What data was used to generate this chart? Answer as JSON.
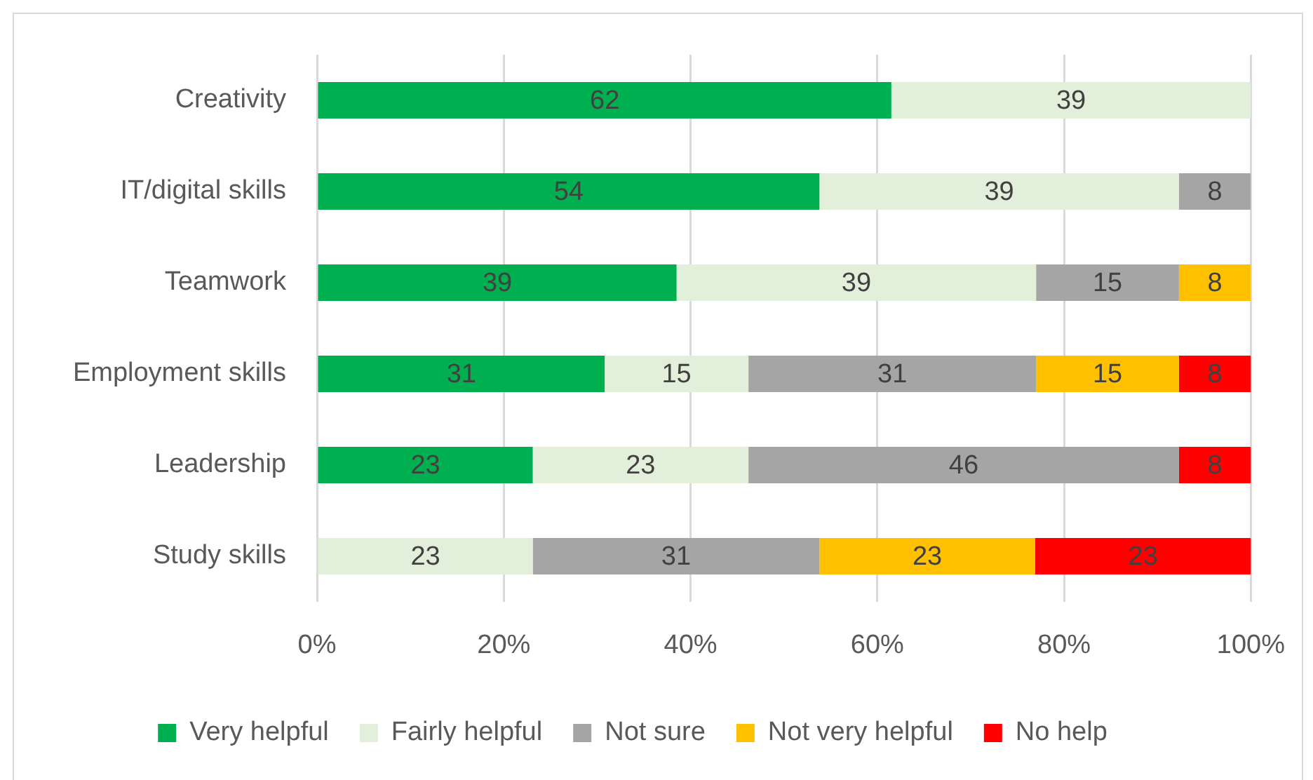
{
  "chart_data": {
    "type": "bar",
    "orientation": "horizontal",
    "stacked": true,
    "categories": [
      "Creativity",
      "IT/digital skills",
      "Teamwork",
      "Employment skills",
      "Leadership",
      "Study skills"
    ],
    "series": [
      {
        "name": "Very helpful",
        "color": "#00b050",
        "values": [
          61.5,
          53.8,
          38.5,
          30.8,
          23.1,
          null
        ],
        "value_labels": [
          "62",
          "54",
          "39",
          "31",
          "23",
          null
        ]
      },
      {
        "name": "Fairly helpful",
        "color": "#e2efda",
        "values": [
          38.5,
          38.5,
          38.5,
          15.4,
          23.1,
          23.1
        ],
        "value_labels": [
          "39",
          "39",
          "39",
          "15",
          "23",
          "23"
        ]
      },
      {
        "name": "Not sure",
        "color": "#a5a5a5",
        "values": [
          null,
          7.7,
          15.3,
          30.8,
          46.1,
          30.7
        ],
        "value_labels": [
          null,
          "8",
          "15",
          "31",
          "46",
          "31"
        ]
      },
      {
        "name": "Not very helpful",
        "color": "#ffc000",
        "values": [
          null,
          null,
          7.7,
          15.3,
          null,
          23.1
        ],
        "value_labels": [
          null,
          null,
          "8",
          "15",
          null,
          "23"
        ]
      },
      {
        "name": "No help",
        "color": "#ff0000",
        "values": [
          null,
          null,
          null,
          7.7,
          7.7,
          23.1
        ],
        "value_labels": [
          null,
          null,
          null,
          "8",
          "8",
          "23"
        ]
      }
    ],
    "xlim": [
      0,
      100
    ],
    "xticks": [
      {
        "value": 0,
        "label": "0%"
      },
      {
        "value": 20,
        "label": "20%"
      },
      {
        "value": 40,
        "label": "40%"
      },
      {
        "value": 60,
        "label": "60%"
      },
      {
        "value": 80,
        "label": "80%"
      },
      {
        "value": 100,
        "label": "100%"
      }
    ],
    "grid": "x",
    "legend": "bottom"
  }
}
